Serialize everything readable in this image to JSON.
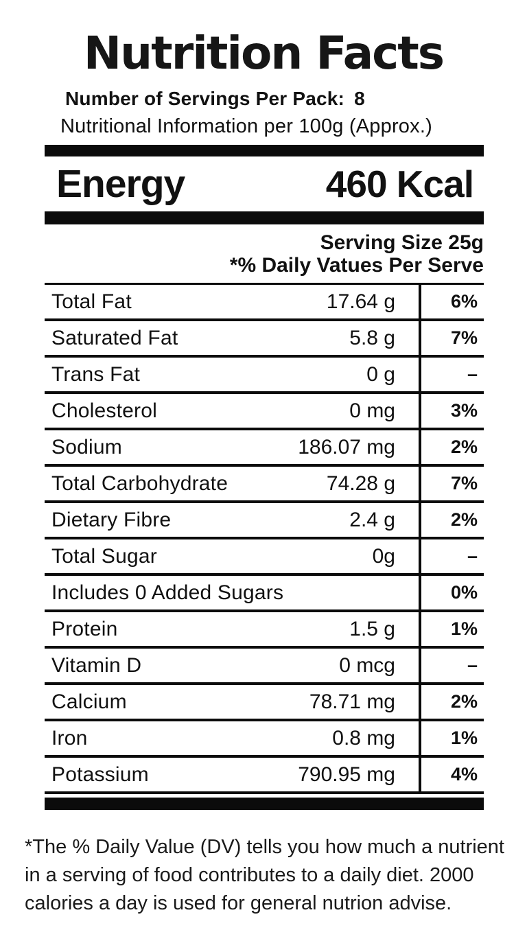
{
  "page": {
    "background": "#ffffff",
    "ink": "#111111",
    "bar_color": "#0b0b0b"
  },
  "header": {
    "title": "Nutrition Facts",
    "servings_label": "Number of Servings Per Pack:",
    "servings_value": "8",
    "per_quantity_line": "Nutritional Information per 100g (Approx.)"
  },
  "energy": {
    "label": "Energy",
    "value": "460 Kcal"
  },
  "serving_info": {
    "serving_size": "Serving Size 25g",
    "daily_value_note": "*% Daily Vatues Per Serve"
  },
  "nutrients": {
    "rows": [
      {
        "label": "Total Fat",
        "amount": "17.64 g",
        "percent": "6%"
      },
      {
        "label": "Saturated Fat",
        "amount": "5.8 g",
        "percent": "7%"
      },
      {
        "label": "Trans Fat",
        "amount": "0 g",
        "percent": "–"
      },
      {
        "label": "Cholesterol",
        "amount": "0 mg",
        "percent": "3%"
      },
      {
        "label": "Sodium",
        "amount": "186.07 mg",
        "percent": "2%"
      },
      {
        "label": "Total Carbohydrate",
        "amount": "74.28 g",
        "percent": "7%"
      },
      {
        "label": "Dietary Fibre",
        "amount": "2.4 g",
        "percent": "2%"
      },
      {
        "label": "Total Sugar",
        "amount": "0g",
        "percent": "–"
      },
      {
        "label": "Includes 0 Added Sugars",
        "amount": "",
        "percent": "0%"
      },
      {
        "label": "Protein",
        "amount": "1.5 g",
        "percent": "1%"
      },
      {
        "label": "Vitamin D",
        "amount": "0 mcg",
        "percent": "–"
      },
      {
        "label": "Calcium",
        "amount": "78.71 mg",
        "percent": "2%"
      },
      {
        "label": "Iron",
        "amount": "0.8 mg",
        "percent": "1%"
      },
      {
        "label": "Potassium",
        "amount": "790.95 mg",
        "percent": "4%"
      }
    ]
  },
  "footnote": {
    "lines": [
      "*The % Daily Value (DV) tells you how much a nutrient",
      "in a serving of food contributes to a daily diet. 2000",
      "calories a day is used for general nutrion advise."
    ]
  }
}
